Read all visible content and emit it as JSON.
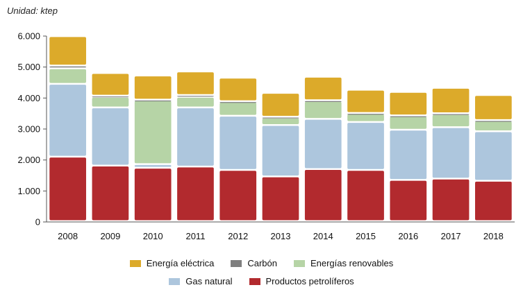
{
  "chart_data": {
    "type": "bar",
    "stacked": true,
    "unit_label": "Unidad: ktep",
    "categories": [
      "2008",
      "2009",
      "2010",
      "2011",
      "2012",
      "2013",
      "2014",
      "2015",
      "2016",
      "2017",
      "2018"
    ],
    "y_ticks": [
      "0",
      "1.000",
      "2.000",
      "3.000",
      "4.000",
      "5.000",
      "6.000"
    ],
    "ylim": [
      0,
      6000
    ],
    "series": [
      {
        "name": "Productos petrolíferos",
        "color": "#b22a2e",
        "values": [
          2080,
          1790,
          1720,
          1760,
          1650,
          1440,
          1680,
          1650,
          1330,
          1370,
          1300
        ]
      },
      {
        "name": "Gas natural",
        "color": "#adc6dd",
        "values": [
          2350,
          1880,
          120,
          1910,
          1750,
          1660,
          1620,
          1550,
          1620,
          1660,
          1600
        ]
      },
      {
        "name": "Energías renovables",
        "color": "#b6d4a6",
        "values": [
          500,
          340,
          2060,
          340,
          450,
          240,
          580,
          270,
          440,
          420,
          340
        ]
      },
      {
        "name": "Carbón",
        "color": "#7f7f7f",
        "values": [
          90,
          40,
          20,
          60,
          20,
          30,
          20,
          20,
          20,
          30,
          20
        ]
      },
      {
        "name": "Energía eléctrica",
        "color": "#dcaa2a",
        "values": [
          950,
          730,
          780,
          760,
          760,
          770,
          760,
          750,
          760,
          820,
          810
        ]
      }
    ],
    "legend_rows": [
      [
        "Energía eléctrica",
        "Carbón",
        "Energías renovables"
      ],
      [
        "Gas natural",
        "Productos petrolíferos"
      ]
    ]
  }
}
